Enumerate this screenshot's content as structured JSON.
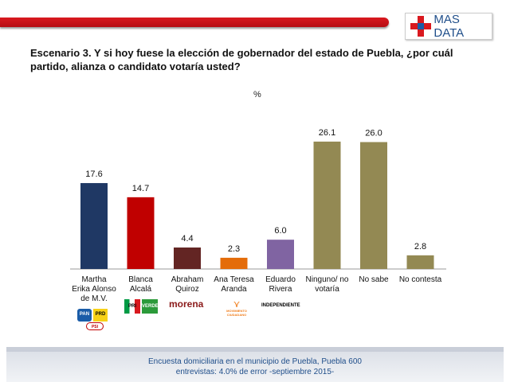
{
  "brand": {
    "logo_text": "MAS DATA",
    "accent": "#d9191f",
    "brand_blue": "#1f4e8a"
  },
  "title": "Escenario 3. Y si hoy fuese la elección de gobernador del estado de Puebla, ¿por cuál partido, alianza o candidato votaría usted?",
  "chart_data": {
    "type": "bar",
    "title": "",
    "unit_label": "%",
    "categories": [
      "Martha Erika Alonso de M.V.",
      "Blanca Alcalá",
      "Abraham Quiroz",
      "Ana Teresa Aranda",
      "Eduardo Rivera",
      "Ninguno/ no votaría",
      "No sabe",
      "No contesta"
    ],
    "category_lines": [
      [
        "Martha",
        "Erika Alonso",
        "de M.V."
      ],
      [
        "Blanca",
        "Alcalá"
      ],
      [
        "Abraham",
        "Quiroz"
      ],
      [
        "Ana Teresa",
        "Aranda"
      ],
      [
        "Eduardo",
        "Rivera"
      ],
      [
        "Ninguno/ no",
        "votaría"
      ],
      [
        "No sabe"
      ],
      [
        "No contesta"
      ]
    ],
    "values": [
      17.6,
      14.7,
      4.4,
      2.3,
      6.0,
      26.1,
      26.0,
      2.8
    ],
    "value_labels": [
      "17.6",
      "14.7",
      "4.4",
      "2.3",
      "6.0",
      "26.1",
      "26.0",
      "2.8"
    ],
    "colors": [
      "#1f3864",
      "#c00000",
      "#632523",
      "#e46c0a",
      "#8064a2",
      "#938953",
      "#938953",
      "#938953"
    ],
    "ylim": [
      0,
      30
    ],
    "grid": false,
    "legend": "none"
  },
  "party_logos": {
    "martha": [
      "PAN",
      "PRD",
      "PSI"
    ],
    "blanca": [
      "PRI",
      "VERDE"
    ],
    "abraham": "morena",
    "ana": "MOVIMIENTO CIUDADANO",
    "eduardo": "INDEPENDIENTE"
  },
  "footer": {
    "line1": "Encuesta domiciliaria en el municipio de Puebla, Puebla 600",
    "line2": "entrevistas: 4.0% de error -septiembre 2015-"
  }
}
